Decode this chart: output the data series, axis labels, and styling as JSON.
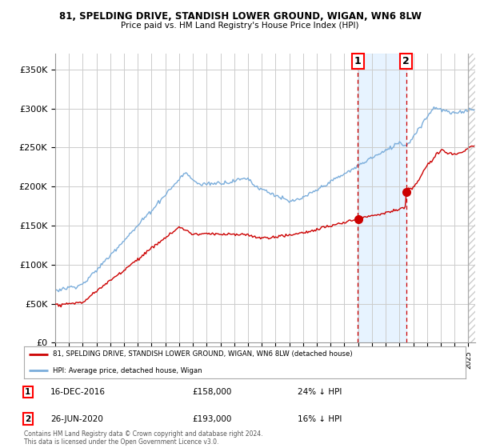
{
  "title": "81, SPELDING DRIVE, STANDISH LOWER GROUND, WIGAN, WN6 8LW",
  "subtitle": "Price paid vs. HM Land Registry's House Price Index (HPI)",
  "ylim": [
    0,
    370000
  ],
  "yticks": [
    0,
    50000,
    100000,
    150000,
    200000,
    250000,
    300000,
    350000
  ],
  "ytick_labels": [
    "£0",
    "£50K",
    "£100K",
    "£150K",
    "£200K",
    "£250K",
    "£300K",
    "£350K"
  ],
  "hpi_color": "#7aaddb",
  "price_color": "#cc0000",
  "grid_color": "#cccccc",
  "marker1_date": 2016.96,
  "marker1_price": 158000,
  "marker2_date": 2020.49,
  "marker2_price": 193000,
  "legend_line1": "81, SPELDING DRIVE, STANDISH LOWER GROUND, WIGAN, WN6 8LW (detached house)",
  "legend_line2": "HPI: Average price, detached house, Wigan",
  "footer": "Contains HM Land Registry data © Crown copyright and database right 2024.\nThis data is licensed under the Open Government Licence v3.0.",
  "xstart": 1995.0,
  "xend": 2025.5,
  "background_color": "#ffffff",
  "shade_color": "#ddeeff",
  "hatch_color": "#cccccc"
}
